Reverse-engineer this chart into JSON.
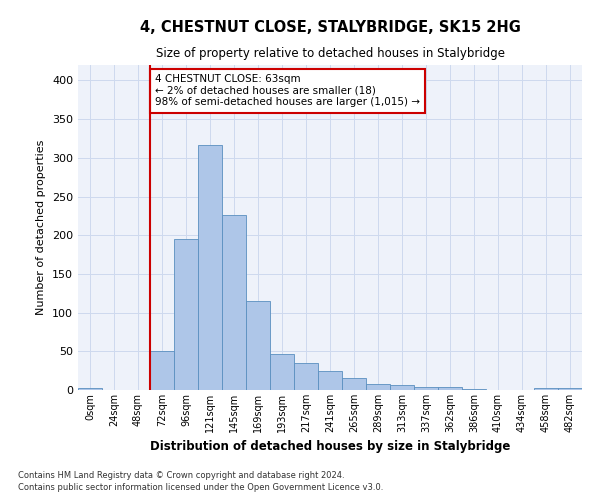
{
  "title": "4, CHESTNUT CLOSE, STALYBRIDGE, SK15 2HG",
  "subtitle": "Size of property relative to detached houses in Stalybridge",
  "xlabel": "Distribution of detached houses by size in Stalybridge",
  "ylabel": "Number of detached properties",
  "categories": [
    "0sqm",
    "24sqm",
    "48sqm",
    "72sqm",
    "96sqm",
    "121sqm",
    "145sqm",
    "169sqm",
    "193sqm",
    "217sqm",
    "241sqm",
    "265sqm",
    "289sqm",
    "313sqm",
    "337sqm",
    "362sqm",
    "386sqm",
    "410sqm",
    "434sqm",
    "458sqm",
    "482sqm"
  ],
  "values": [
    2,
    0,
    0,
    51,
    195,
    317,
    226,
    115,
    46,
    35,
    25,
    15,
    8,
    6,
    4,
    4,
    1,
    0,
    0,
    2,
    3
  ],
  "bar_color": "#aec6e8",
  "bar_edge_color": "#5a8fc0",
  "grid_color": "#cdd9ee",
  "background_color": "#eef2fa",
  "vline_color": "#cc0000",
  "annotation_text": "4 CHESTNUT CLOSE: 63sqm\n← 2% of detached houses are smaller (18)\n98% of semi-detached houses are larger (1,015) →",
  "annotation_box_color": "#ffffff",
  "annotation_box_edge": "#cc0000",
  "ylim": [
    0,
    420
  ],
  "yticks": [
    0,
    50,
    100,
    150,
    200,
    250,
    300,
    350,
    400
  ],
  "footer1": "Contains HM Land Registry data © Crown copyright and database right 2024.",
  "footer2": "Contains public sector information licensed under the Open Government Licence v3.0."
}
